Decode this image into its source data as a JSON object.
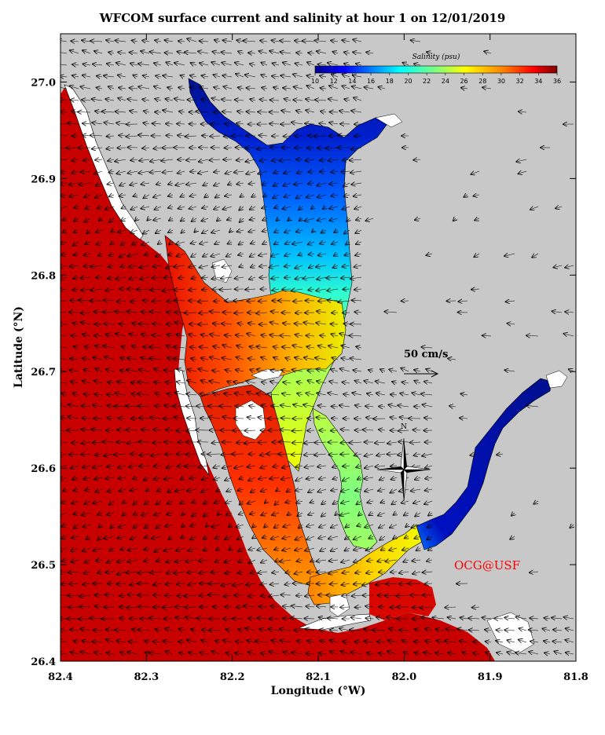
{
  "title": "WFCOM surface current and salinity at hour 1 on 12/01/2019",
  "axes": {
    "xlabel": "Longitude (°W)",
    "ylabel": "Latitude (°N)",
    "x_ticks": [
      "82.4",
      "82.3",
      "82.2",
      "82.1",
      "82.0",
      "81.9",
      "81.8"
    ],
    "y_ticks": [
      "26.4",
      "26.5",
      "26.6",
      "26.7",
      "26.8",
      "26.9",
      "27.0"
    ],
    "xlim": [
      82.4,
      81.8
    ],
    "ylim": [
      26.4,
      27.05
    ]
  },
  "colorbar": {
    "title": "Salinity (psu)",
    "ticks": [
      "10",
      "12",
      "14",
      "16",
      "18",
      "20",
      "22",
      "24",
      "26",
      "28",
      "30",
      "32",
      "34",
      "36"
    ],
    "range": [
      10,
      36
    ],
    "colors": [
      "#00008f",
      "#0000ff",
      "#0080ff",
      "#00ffff",
      "#80ff80",
      "#ffff00",
      "#ff8000",
      "#ff0000",
      "#800000"
    ]
  },
  "scale_arrow": {
    "label": "50 cm/s"
  },
  "compass": {
    "label": "N"
  },
  "credit": {
    "text": "OCG@USF",
    "color": "#ff0000"
  },
  "colors": {
    "land": "#c8c8c8",
    "gulf": "#c80000"
  }
}
